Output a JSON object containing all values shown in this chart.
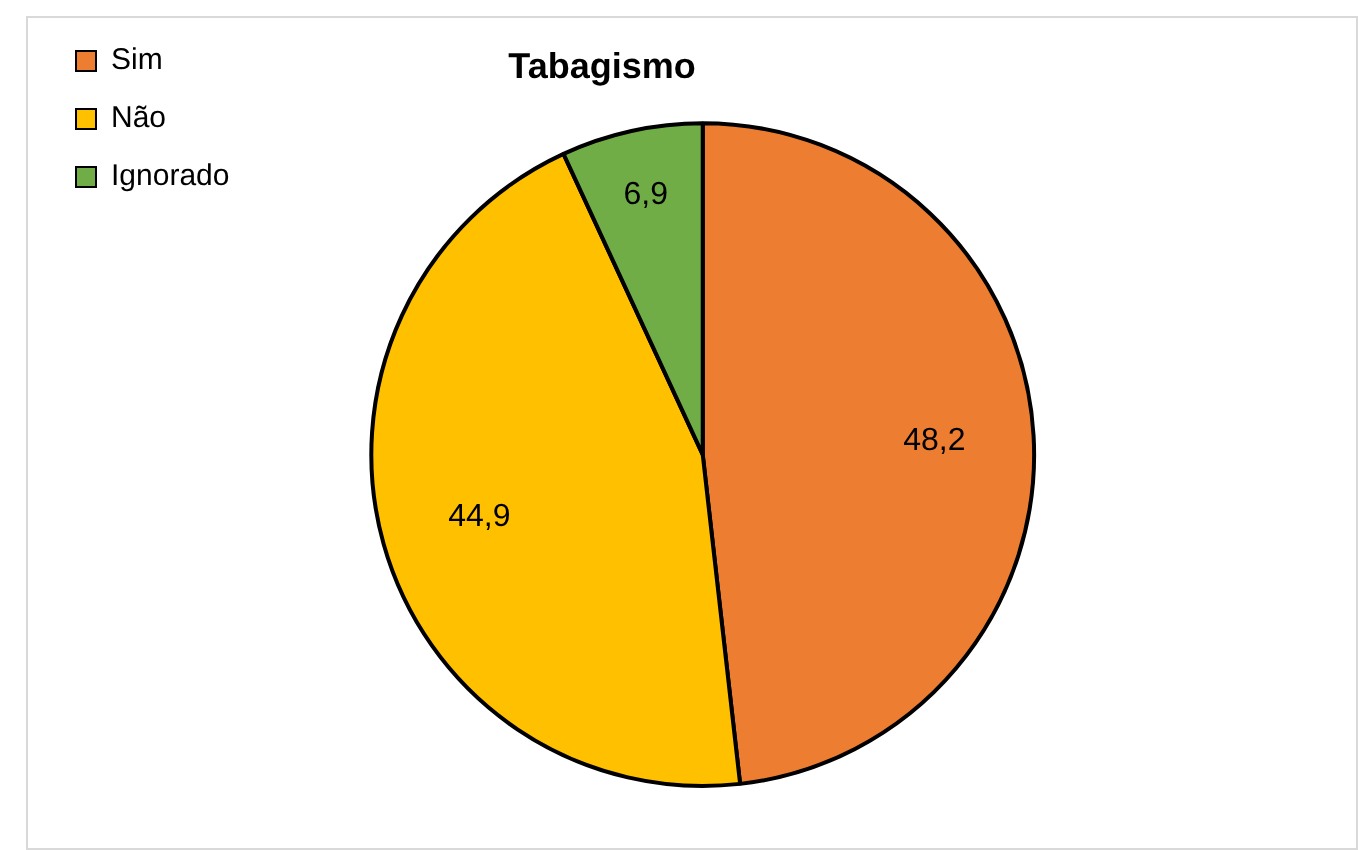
{
  "chart_data": {
    "type": "pie",
    "title": "Tabagismo",
    "categories": [
      "Sim",
      "Não",
      "Ignorado"
    ],
    "values": [
      48.2,
      44.9,
      6.9
    ],
    "colors": [
      "#ed7d31",
      "#ffc000",
      "#70ad47"
    ],
    "value_labels": [
      "48,2",
      "44,9",
      "6,9"
    ],
    "legend": "top left"
  }
}
